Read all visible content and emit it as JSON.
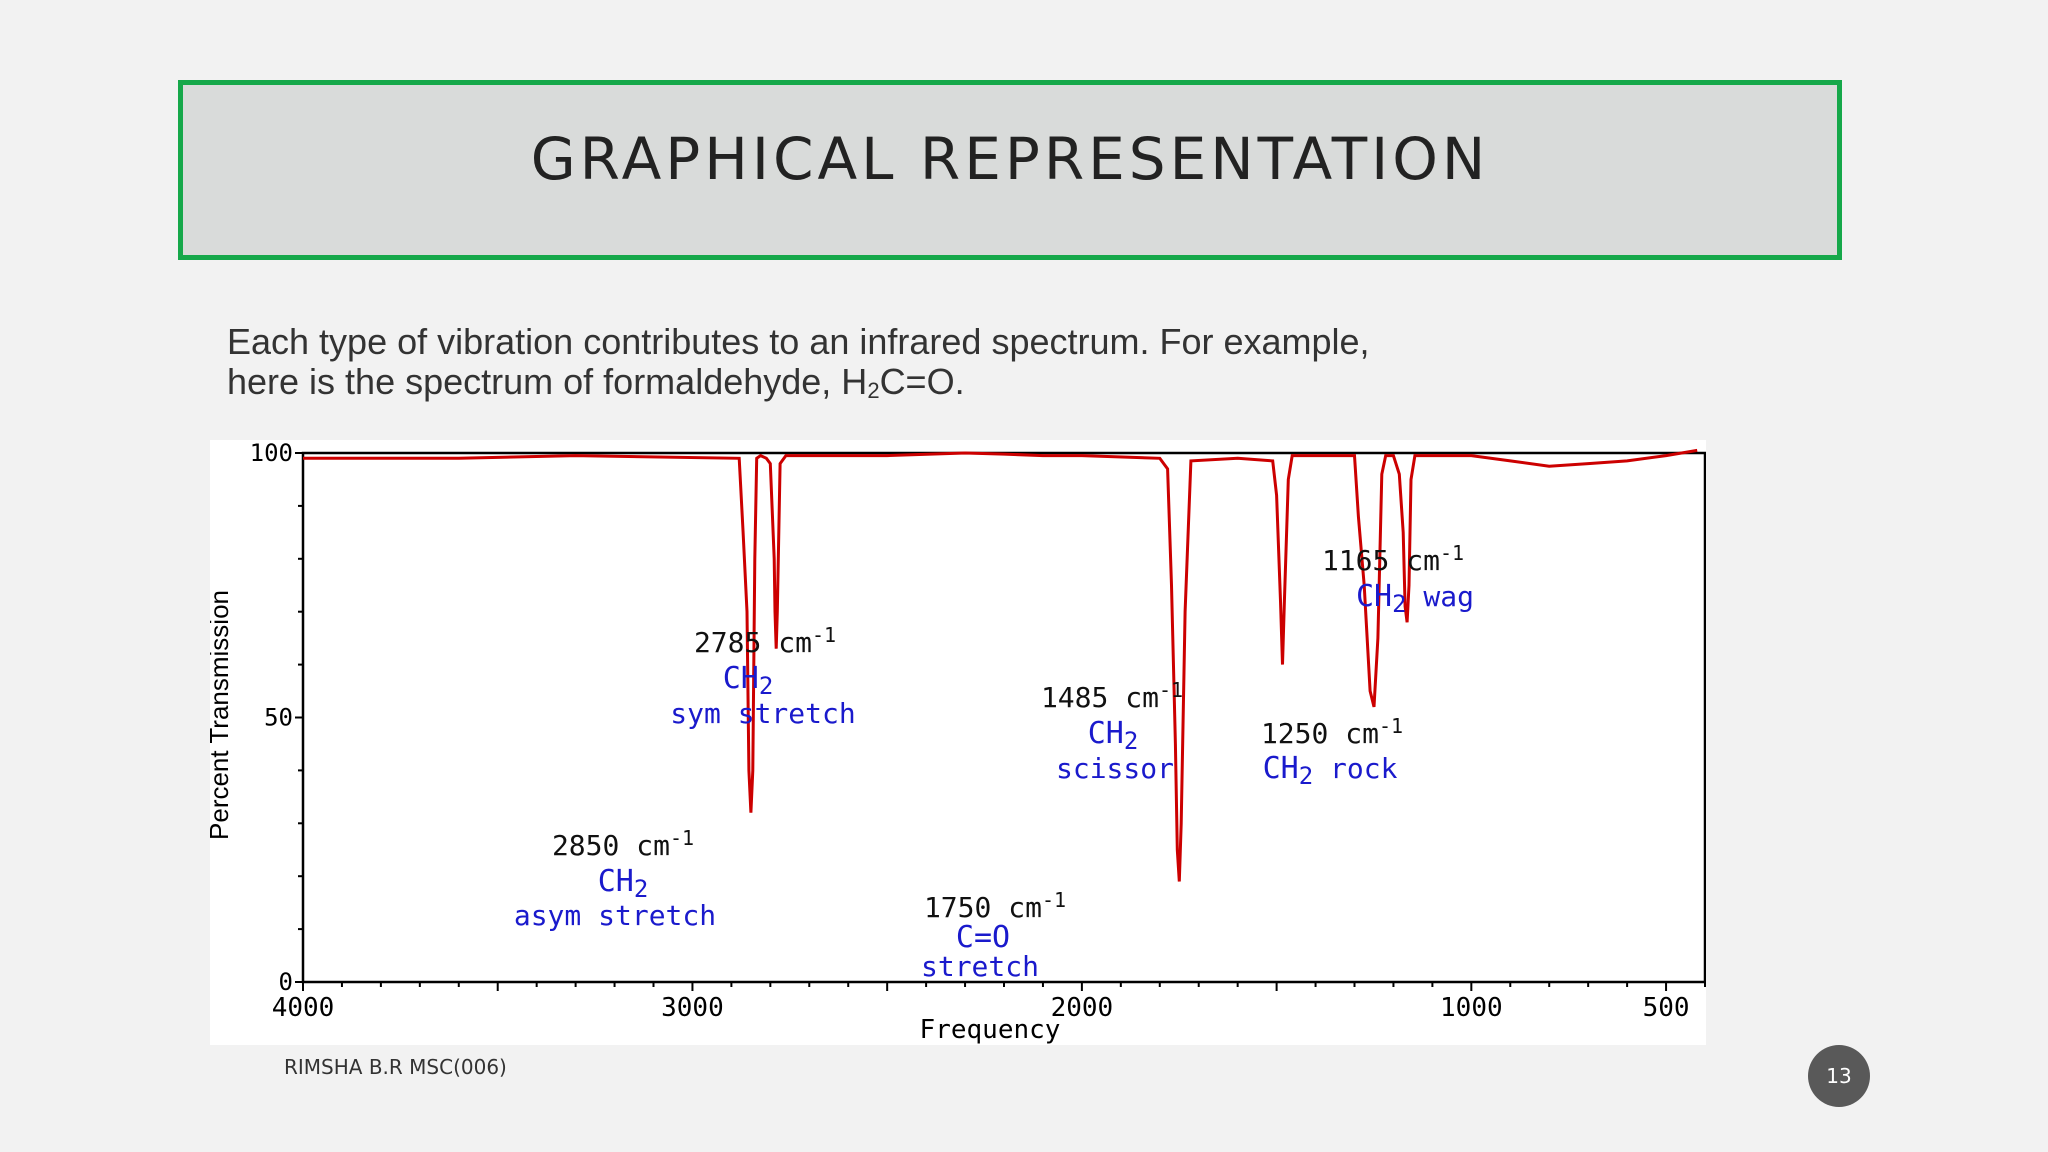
{
  "slide": {
    "title": "GRAPHICAL REPRESENTATION",
    "body_line1": "Each type of vibration contributes to an infrared spectrum. For example,",
    "body_line2_prefix": "here is the spectrum of formaldehyde, H",
    "body_line2_sub": "2",
    "body_line2_suffix": "C=O.",
    "footer": "RIMSHA B.R MSC(006)",
    "page_number": "13"
  },
  "chart_data": {
    "type": "line",
    "xlabel": "Frequency",
    "ylabel": "Percent Transmission",
    "xlim": [
      4000,
      400
    ],
    "ylim": [
      0,
      100
    ],
    "x_ticks": [
      "4000",
      "3000",
      "2000",
      "1000",
      "500"
    ],
    "y_ticks": [
      "100",
      "50",
      "0"
    ],
    "line_color": "#cc0000",
    "label_color": "#1a1acc",
    "series": [
      {
        "x": [
          4000,
          3900,
          3600,
          3300,
          2880,
          2870,
          2860,
          2855,
          2850,
          2845,
          2840,
          2835,
          2825,
          2810,
          2800,
          2790,
          2788,
          2785,
          2782,
          2775,
          2760,
          2500,
          2300,
          2200,
          2100,
          2000,
          1800,
          1780,
          1770,
          1760,
          1755,
          1750,
          1745,
          1735,
          1720,
          1600,
          1510,
          1500,
          1490,
          1485,
          1480,
          1470,
          1460,
          1400,
          1300,
          1290,
          1275,
          1260,
          1250,
          1240,
          1230,
          1220,
          1200,
          1185,
          1175,
          1170,
          1165,
          1160,
          1155,
          1145,
          1100,
          1000,
          900,
          800,
          700,
          600,
          500,
          420
        ],
        "y": [
          99,
          99,
          99,
          99.5,
          99,
          85,
          70,
          40,
          32,
          40,
          80,
          99,
          99.5,
          99,
          98,
          80,
          70,
          63,
          70,
          98,
          99.5,
          99.5,
          100,
          99.8,
          99.5,
          99.5,
          99,
          97,
          75,
          45,
          25,
          19,
          30,
          70,
          98.5,
          99,
          98.5,
          92,
          72,
          60,
          72,
          95,
          99.5,
          99.5,
          99.5,
          88,
          75,
          55,
          52,
          65,
          96,
          99.5,
          99.5,
          96,
          85,
          71,
          68,
          75,
          95,
          99.5,
          99.5,
          99.5,
          98.5,
          97.5,
          98,
          98.5,
          99.5,
          100.5
        ]
      }
    ],
    "annotations": [
      {
        "wavenumber": "2785 cm",
        "group": "CH",
        "sub": "2",
        "mode": "sym stretch"
      },
      {
        "wavenumber": "2850 cm",
        "group": "CH",
        "sub": "2",
        "mode": "asym stretch"
      },
      {
        "wavenumber": "1750 cm",
        "group": "C=O",
        "sub": "",
        "mode": "stretch"
      },
      {
        "wavenumber": "1485 cm",
        "group": "CH",
        "sub": "2",
        "mode": "scissor"
      },
      {
        "wavenumber": "1250 cm",
        "group": "CH",
        "sub": "2",
        "mode": "rock"
      },
      {
        "wavenumber": "1165 cm",
        "group": "CH",
        "sub": "2",
        "mode": "wag"
      }
    ],
    "superscript": "-1"
  }
}
